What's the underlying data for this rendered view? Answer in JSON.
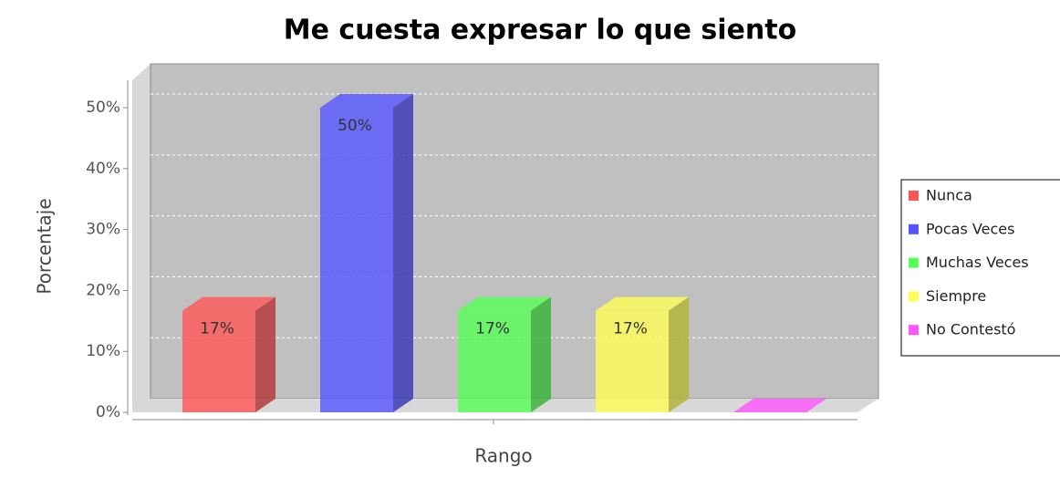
{
  "chart_data": {
    "type": "bar3d",
    "title": "Me cuesta expresar lo que siento",
    "x_label": "Rango",
    "y_label": "Porcentaje",
    "ylim": [
      0,
      54.5
    ],
    "yticks": [
      {
        "value": 0,
        "label": "0%"
      },
      {
        "value": 10,
        "label": "10%"
      },
      {
        "value": 20,
        "label": "20%"
      },
      {
        "value": 30,
        "label": "30%"
      },
      {
        "value": 40,
        "label": "40%"
      },
      {
        "value": 50,
        "label": "50%"
      }
    ],
    "grid": true,
    "legend": "right",
    "series": [
      {
        "name": "Nunca",
        "color": "#ff5555",
        "values": [
          16.67
        ],
        "value_labels": [
          "17%"
        ]
      },
      {
        "name": "Pocas Veces",
        "color": "#5555ff",
        "values": [
          50
        ],
        "value_labels": [
          "50%"
        ]
      },
      {
        "name": "Muchas Veces",
        "color": "#55ff55",
        "values": [
          16.67
        ],
        "value_labels": [
          "17%"
        ]
      },
      {
        "name": "Siempre",
        "color": "#ffff55",
        "values": [
          16.67
        ],
        "value_labels": [
          "17%"
        ]
      },
      {
        "name": "No Contestó",
        "color": "#ff55ff",
        "values": [
          0
        ]
      }
    ]
  }
}
